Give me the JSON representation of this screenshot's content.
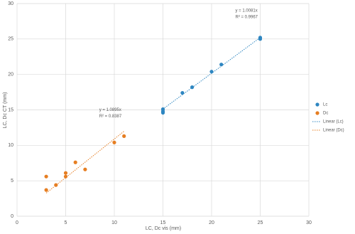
{
  "chart_data": {
    "type": "scatter",
    "xlabel": "LC, Dc vis (mm)",
    "ylabel": "LC, Dc CT (mm)",
    "xlim": [
      0,
      30
    ],
    "ylim": [
      0,
      30
    ],
    "xticks": [
      0,
      5,
      10,
      15,
      20,
      25,
      30
    ],
    "yticks": [
      0,
      5,
      10,
      15,
      20,
      25,
      30
    ],
    "grid": true,
    "legend": "right",
    "series": [
      {
        "name": "Lc",
        "color": "#2e86c1",
        "x": [
          15,
          15,
          15,
          17,
          18,
          20,
          21,
          25,
          25
        ],
        "values": [
          15.1,
          14.8,
          14.6,
          17.4,
          18.2,
          20.4,
          21.4,
          25.2,
          25.0
        ],
        "trendline": {
          "name": "Linear (Lc)",
          "slope": 1.0081,
          "equation": "y = 1.0081x",
          "r2": "R² = 0.9967"
        }
      },
      {
        "name": "Dc",
        "color": "#e67e22",
        "x": [
          3,
          3,
          4,
          5,
          5,
          6,
          7,
          10,
          11
        ],
        "values": [
          3.7,
          5.6,
          4.4,
          5.6,
          6.1,
          7.6,
          6.6,
          10.4,
          11.3
        ],
        "trendline": {
          "name": "Linear (Dc)",
          "slope": 1.0895,
          "equation": "y = 1.0895x",
          "r2": "R² = 0.8387"
        }
      }
    ]
  }
}
